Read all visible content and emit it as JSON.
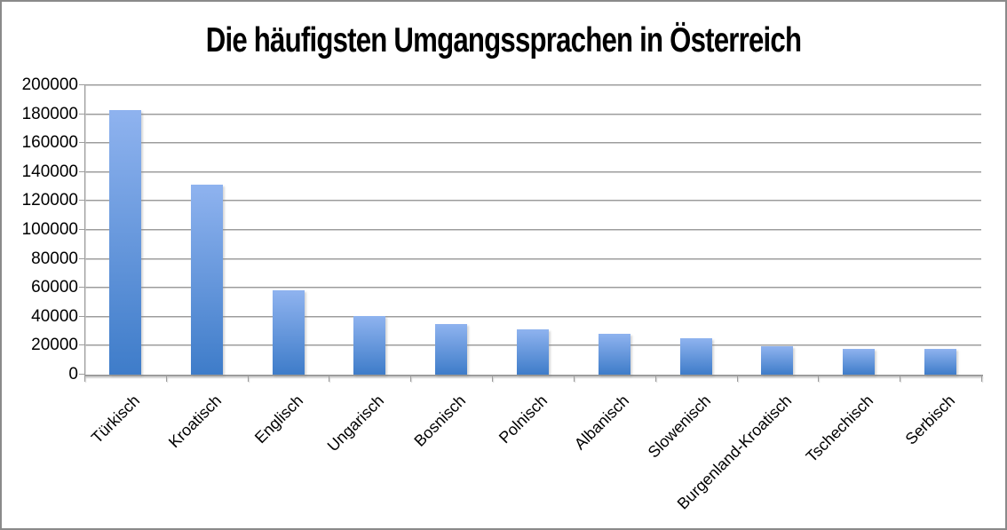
{
  "title": "Die häufigsten Umgangssprachen in Österreich",
  "colors": {
    "border": "#8a8a8a",
    "gridline": "#9c9c9c",
    "bar_gradient_top": "#8fb3ef",
    "bar_gradient_bottom": "#3e7cc9",
    "text": "#000000",
    "background": "#ffffff"
  },
  "chart_data": {
    "type": "bar",
    "title": "Die häufigsten Umgangssprachen in Österreich",
    "categories": [
      "Türkisch",
      "Kroatisch",
      "Englisch",
      "Ungarisch",
      "Bosnisch",
      "Polnisch",
      "Albanisch",
      "Slowenisch",
      "Burgenland-Kroatisch",
      "Tschechisch",
      "Serbisch"
    ],
    "values": [
      183000,
      131000,
      58500,
      40500,
      35000,
      31000,
      28000,
      25000,
      19800,
      18000,
      17800
    ],
    "xlabel": "",
    "ylabel": "",
    "ylim": [
      0,
      200000
    ],
    "ytick_step": 20000,
    "ytick_labels": [
      "0",
      "20000",
      "40000",
      "60000",
      "80000",
      "100000",
      "120000",
      "140000",
      "160000",
      "180000",
      "200000"
    ],
    "grid": "horizontal",
    "legend": "none",
    "x_label_rotation_deg": -45
  }
}
